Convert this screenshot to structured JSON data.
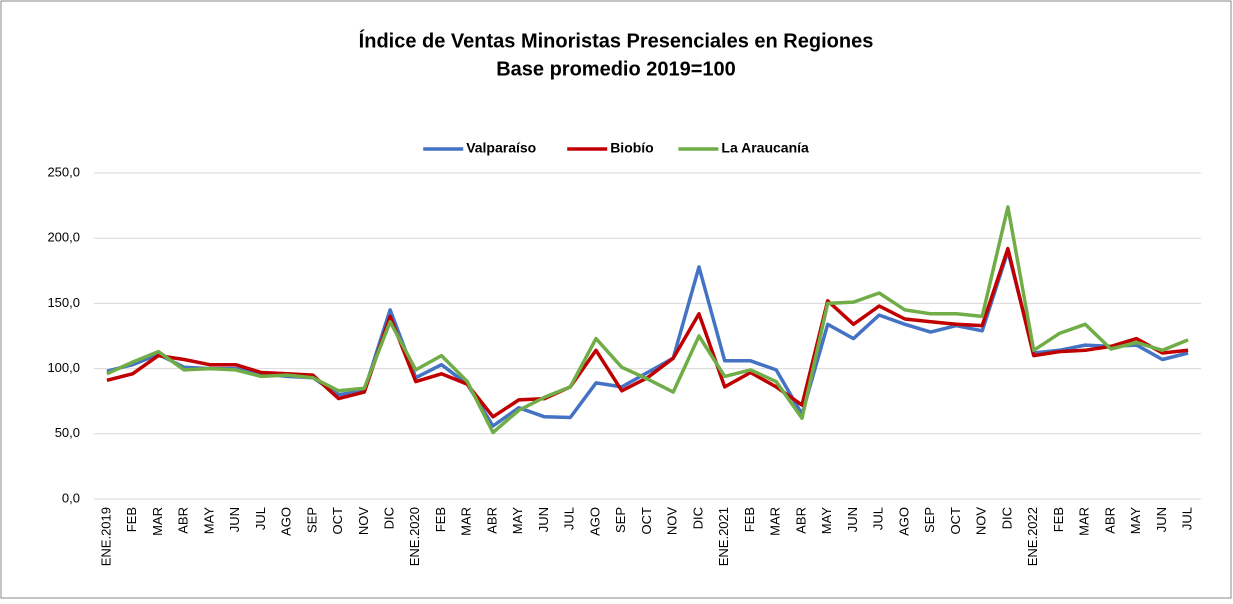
{
  "chart_data": {
    "type": "line",
    "title": "Índice de Ventas Minoristas Presenciales en Regiones",
    "subtitle": "Base promedio 2019=100",
    "categories": [
      "ENE.2019",
      "FEB",
      "MAR",
      "ABR",
      "MAY",
      "JUN",
      "JUL",
      "AGO",
      "SEP",
      "OCT",
      "NOV",
      "DIC",
      "ENE.2020",
      "FEB",
      "MAR",
      "ABR",
      "MAY",
      "JUN",
      "JUL",
      "AGO",
      "SEP",
      "OCT",
      "NOV",
      "DIC",
      "ENE.2021",
      "FEB",
      "MAR",
      "ABR",
      "MAY",
      "JUN",
      "JUL",
      "AGO",
      "SEP",
      "OCT",
      "NOV",
      "DIC",
      "ENE.2022",
      "FEB",
      "MAR",
      "ABR",
      "MAY",
      "JUN",
      "JUL"
    ],
    "series": [
      {
        "name": "Valparaíso",
        "color": "#4472c4",
        "values": [
          98,
          103,
          111,
          101,
          100,
          100,
          96,
          94,
          93,
          80,
          83,
          145,
          93,
          103,
          88,
          56,
          70,
          63,
          62.5,
          89,
          86,
          97,
          108,
          178,
          106,
          106,
          99,
          65,
          134,
          123,
          141,
          134,
          128,
          133,
          129,
          190,
          112,
          114,
          118,
          117,
          118,
          107,
          112
        ]
      },
      {
        "name": "Biobío",
        "color": "#c00000",
        "values": [
          91,
          96,
          110,
          107,
          103,
          103,
          97,
          96,
          95,
          77,
          82,
          140,
          90,
          96,
          88,
          63,
          76,
          77,
          86,
          114,
          83,
          93,
          108,
          142,
          86,
          97,
          86,
          72,
          152,
          134,
          148,
          138,
          136,
          134,
          133,
          192,
          110,
          113,
          114,
          117,
          123,
          112,
          114
        ]
      },
      {
        "name": "La Araucanía",
        "color": "#70ad47",
        "values": [
          96,
          105,
          113,
          99,
          100,
          99,
          94,
          95,
          93,
          83,
          85,
          136,
          99,
          110,
          90,
          51,
          68,
          78,
          86,
          123,
          101,
          92,
          82,
          125,
          94,
          99,
          90,
          62,
          150,
          151,
          158,
          145,
          142,
          142,
          140,
          224,
          114,
          127,
          134,
          115,
          120,
          114,
          122
        ]
      }
    ],
    "ylim": [
      0,
      250
    ],
    "yticks": [
      {
        "value": 0,
        "label": "0,0"
      },
      {
        "value": 50,
        "label": "50,0"
      },
      {
        "value": 100,
        "label": "100,0"
      },
      {
        "value": 150,
        "label": "150,0"
      },
      {
        "value": 200,
        "label": "200,0"
      },
      {
        "value": 250,
        "label": "250,0"
      }
    ],
    "grid": true,
    "legend": "top"
  }
}
